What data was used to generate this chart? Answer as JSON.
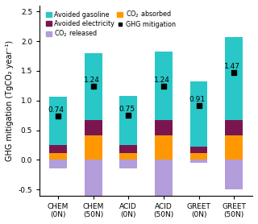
{
  "categories": [
    "CHEM\n(0N)",
    "CHEM\n(50N)",
    "ACID\n(0N)",
    "ACID\n(50N)",
    "GREET\n(0N)",
    "GREET\n(50N)"
  ],
  "co2_released": [
    -0.15,
    -0.6,
    -0.15,
    -0.6,
    -0.05,
    -0.5
  ],
  "co2_absorbed": [
    0.12,
    0.42,
    0.12,
    0.42,
    0.12,
    0.42
  ],
  "avoided_electricity": [
    0.13,
    0.25,
    0.13,
    0.25,
    0.1,
    0.25
  ],
  "avoided_gasoline": [
    0.82,
    1.13,
    0.83,
    1.16,
    1.1,
    1.4
  ],
  "ghg_mitigation": [
    0.74,
    1.24,
    0.75,
    1.24,
    0.91,
    1.47
  ],
  "color_avoided_gasoline": "#29C7C7",
  "color_co2_released": "#B39DDB",
  "color_avoided_electricity": "#7B1550",
  "color_co2_absorbed": "#FF9800",
  "color_ghg_marker": "#000000",
  "ylabel": "GHG mitigation (TgCO₂ year⁻¹)",
  "ylim": [
    -0.6,
    2.6
  ],
  "yticks": [
    -0.5,
    0.0,
    0.5,
    1.0,
    1.5,
    2.0,
    2.5
  ],
  "axis_fontsize": 7,
  "tick_fontsize": 6.5,
  "annot_fontsize": 6.5,
  "bar_width": 0.5,
  "legend_fontsize": 5.8
}
